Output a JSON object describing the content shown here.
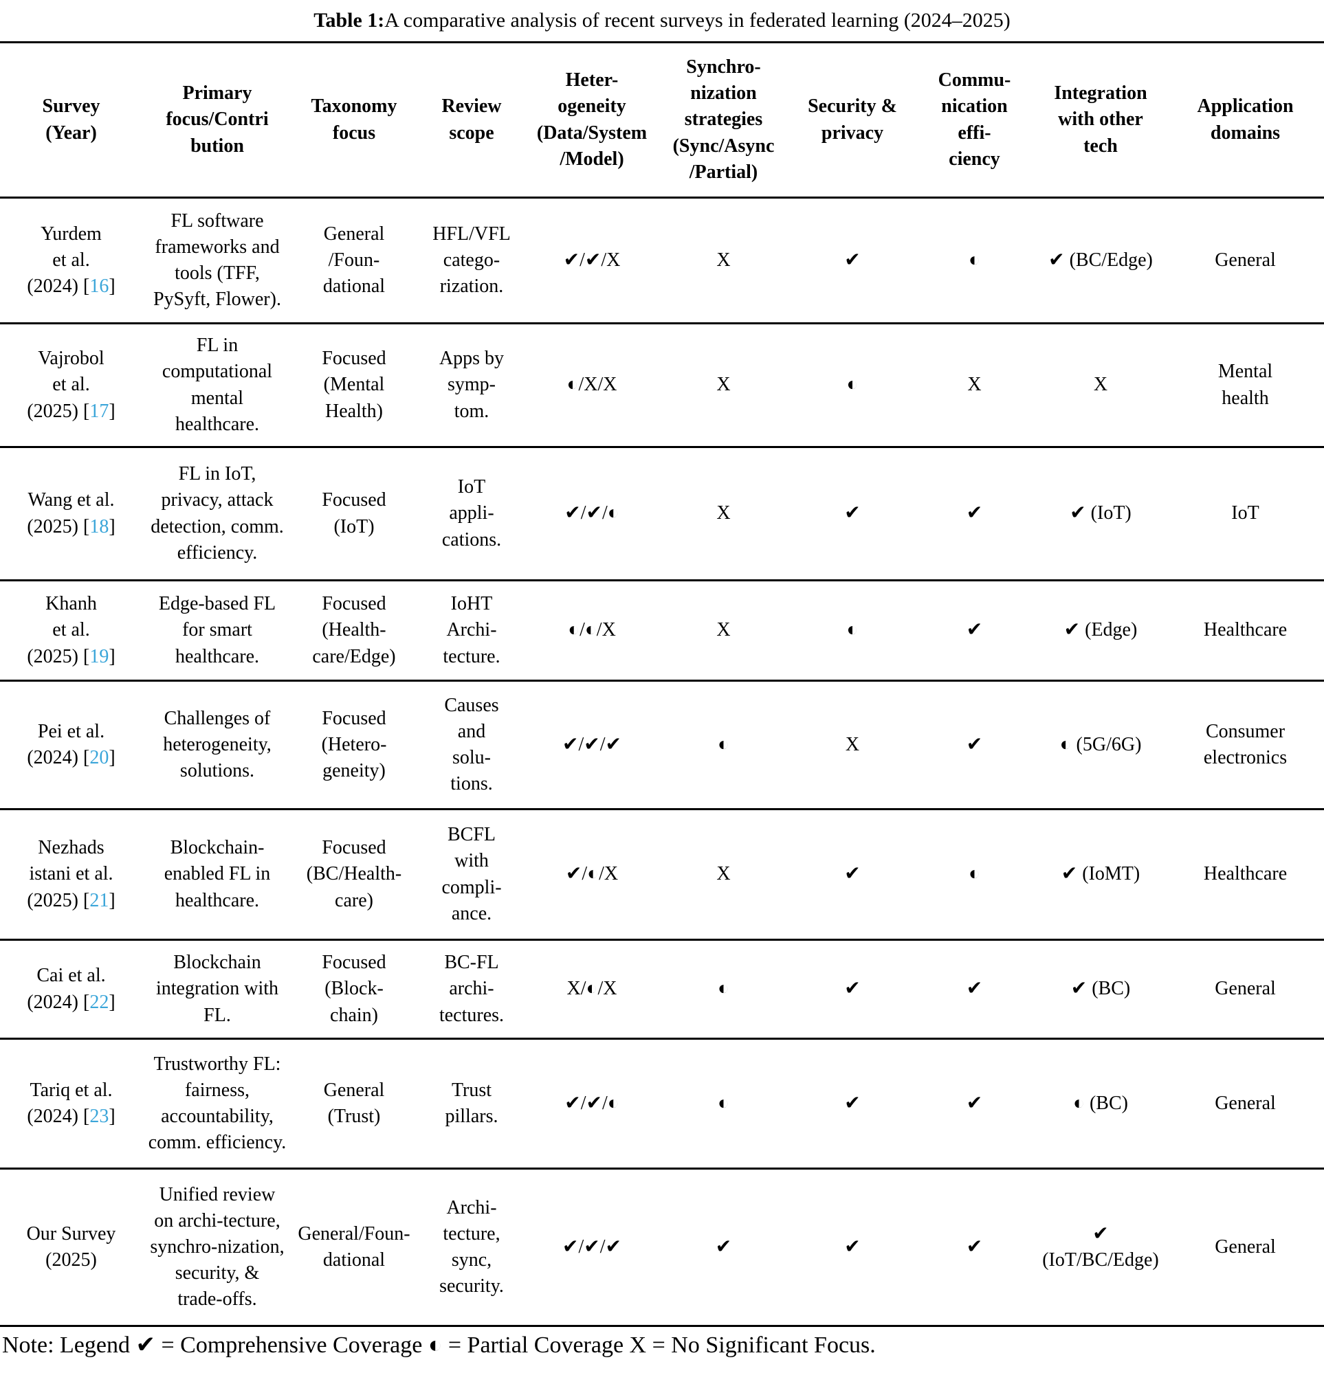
{
  "caption": {
    "label": "Table 1:",
    "text": " A comparative analysis of recent surveys in federated learning (2024–2025)"
  },
  "colors": {
    "reference_link": "#3AA5D9",
    "text": "#000000",
    "background": "#FFFFFF"
  },
  "legend": {
    "check": "✔",
    "partial": "◐",
    "none": "X"
  },
  "columns": [
    "Survey\n(Year)",
    "Primary\nfocus/Contri\nbution",
    "Taxonomy\nfocus",
    "Review\nscope",
    "Heter-\nogeneity\n(Data/System\n/Model)",
    "Synchro-\nnization\nstrategies\n(Sync/Async\n/Partial)",
    "Security &\nprivacy",
    "Commu-\nnication\neffi-\nciency",
    "Integration\nwith other\ntech",
    "Application\ndomains"
  ],
  "rows": [
    {
      "survey_name": "Yurdem\net al.\n(2024)",
      "survey_ref": "16",
      "primary": "FL software\nframeworks and\ntools (TFF,\nPySyft, Flower).",
      "taxonomy": "General\n/Foun-\ndational",
      "review": "HFL/VFL\ncatego-\nrization.",
      "heterogeneity": "✔/✔/X",
      "synchronization": "X",
      "security": "✔",
      "communication": "◐",
      "integration": "✔ (BC/Edge)",
      "application": "General"
    },
    {
      "survey_name": "Vajrobol\net al.\n(2025)",
      "survey_ref": "17",
      "primary": "FL in\ncomputational\nmental\nhealthcare.",
      "taxonomy": "Focused\n(Mental\nHealth)",
      "review": "Apps by\nsymp-\ntom.",
      "heterogeneity": "◐/X/X",
      "synchronization": "X",
      "security": "◐",
      "communication": "X",
      "integration": "X",
      "application": "Mental\nhealth"
    },
    {
      "survey_name": "Wang et al.\n(2025)",
      "survey_ref": "18",
      "primary": "FL in IoT,\nprivacy, attack\ndetection, comm.\nefficiency.",
      "taxonomy": "Focused\n(IoT)",
      "review": "IoT\nappli-\ncations.",
      "heterogeneity": "✔/✔/◐",
      "synchronization": "X",
      "security": "✔",
      "communication": "✔",
      "integration": "✔ (IoT)",
      "application": "IoT"
    },
    {
      "survey_name": "Khanh\net al.\n(2025)",
      "survey_ref": "19",
      "primary": "Edge-based FL\nfor smart\nhealthcare.",
      "taxonomy": "Focused\n(Health-\ncare/Edge)",
      "review": "IoHT\nArchi-\ntecture.",
      "heterogeneity": "◐/◐/X",
      "synchronization": "X",
      "security": "◐",
      "communication": "✔",
      "integration": "✔ (Edge)",
      "application": "Healthcare"
    },
    {
      "survey_name": "Pei et al.\n(2024)",
      "survey_ref": "20",
      "primary": "Challenges of\nheterogeneity,\nsolutions.",
      "taxonomy": "Focused\n(Hetero-\ngeneity)",
      "review": "Causes\nand\nsolu-\ntions.",
      "heterogeneity": "✔/✔/✔",
      "synchronization": "◐",
      "security": "X",
      "communication": "✔",
      "integration": "◐ (5G/6G)",
      "application": "Consumer\nelectronics"
    },
    {
      "survey_name": "Nezhads\nistani et al.\n(2025)",
      "survey_ref": "21",
      "primary": "Blockchain-\nenabled FL in\nhealthcare.",
      "taxonomy": "Focused\n(BC/Health-\ncare)",
      "review": "BCFL\nwith\ncompli-\nance.",
      "heterogeneity": "✔/◐/X",
      "synchronization": "X",
      "security": "✔",
      "communication": "◐",
      "integration": "✔ (IoMT)",
      "application": "Healthcare"
    },
    {
      "survey_name": "Cai et al.\n(2024)",
      "survey_ref": "22",
      "primary": "Blockchain\nintegration with\nFL.",
      "taxonomy": "Focused\n(Block-\nchain)",
      "review": "BC-FL\narchi-\ntectures.",
      "heterogeneity": "X/◐/X",
      "synchronization": "◐",
      "security": "✔",
      "communication": "✔",
      "integration": "✔ (BC)",
      "application": "General"
    },
    {
      "survey_name": "Tariq et al.\n(2024)",
      "survey_ref": "23",
      "primary": "Trustworthy FL:\nfairness,\naccountability,\ncomm. efficiency.",
      "taxonomy": "General\n(Trust)",
      "review": "Trust\npillars.",
      "heterogeneity": "✔/✔/◐",
      "synchronization": "◐",
      "security": "✔",
      "communication": "✔",
      "integration": "◐ (BC)",
      "application": "General"
    },
    {
      "survey_name": "Our Survey\n(2025)",
      "survey_ref": null,
      "primary": "Unified review\non archi-tecture,\nsynchro-nization,\nsecurity, &\ntrade-offs.",
      "taxonomy": "General/Foun-\ndational",
      "review": "Archi-\ntecture,\nsync,\nsecurity.",
      "heterogeneity": "✔/✔/✔",
      "synchronization": "✔",
      "security": "✔",
      "communication": "✔",
      "integration": "✔\n(IoT/BC/Edge)",
      "application": "General"
    }
  ],
  "note": "Note: Legend ✔ = Comprehensive Coverage ◐ = Partial Coverage X = No Significant Focus."
}
